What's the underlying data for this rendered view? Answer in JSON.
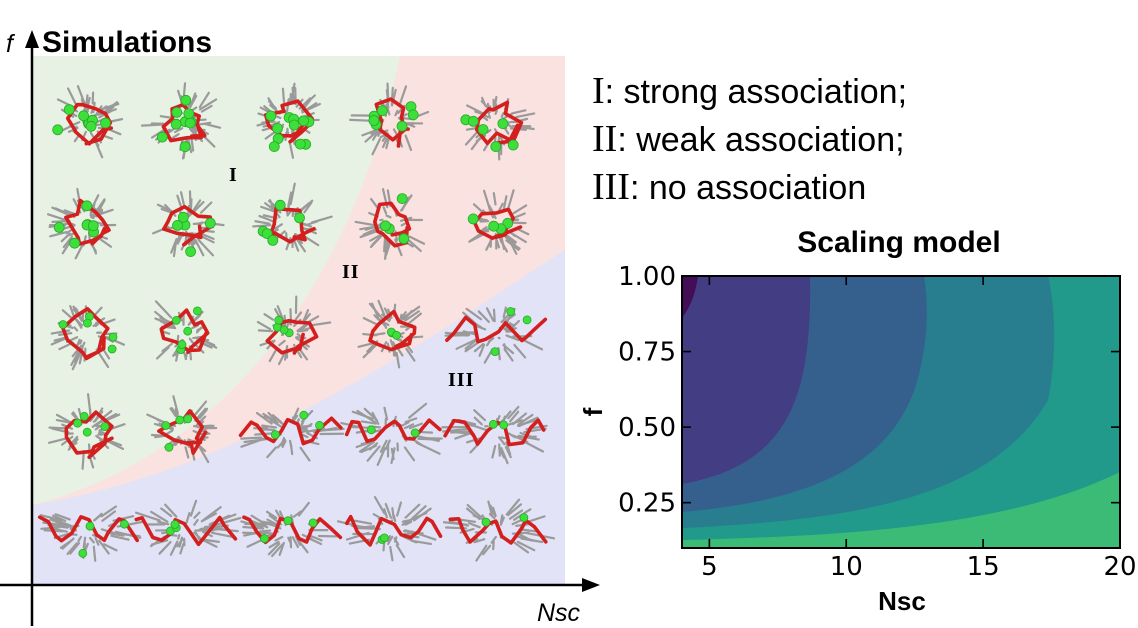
{
  "left_panel": {
    "title": "Simulations",
    "y_axis_label": "f",
    "x_axis_label": "Nsc",
    "regions": [
      {
        "label": "I",
        "name": "strong association",
        "color": "#e8f2e4"
      },
      {
        "label": "II",
        "name": "weak association",
        "color": "#f9e2e0"
      },
      {
        "label": "III",
        "name": "no association",
        "color": "#e2e3f6"
      }
    ],
    "grid": {
      "rows": 5,
      "cols": 5
    }
  },
  "legend": {
    "items": [
      {
        "numeral": "I",
        "text": ": strong association;"
      },
      {
        "numeral": "II",
        "text": ": weak association;"
      },
      {
        "numeral": "III",
        "text": ": no association"
      }
    ]
  },
  "chart_data": {
    "type": "heatmap",
    "title": "Scaling model",
    "xlabel": "Nsc",
    "ylabel": "f",
    "xlim": [
      4,
      20
    ],
    "ylim": [
      0.1,
      1.0
    ],
    "xticks": [
      5,
      10,
      15,
      20
    ],
    "yticks": [
      "0.25",
      "0.50",
      "0.75",
      "1.00"
    ],
    "colormap": "viridis",
    "levels": [
      {
        "color": "#440e57"
      },
      {
        "color": "#433d84"
      },
      {
        "color": "#355f8d"
      },
      {
        "color": "#287d8e"
      },
      {
        "color": "#21998b"
      },
      {
        "color": "#3bbb75"
      },
      {
        "color": "#8dd544"
      }
    ]
  }
}
